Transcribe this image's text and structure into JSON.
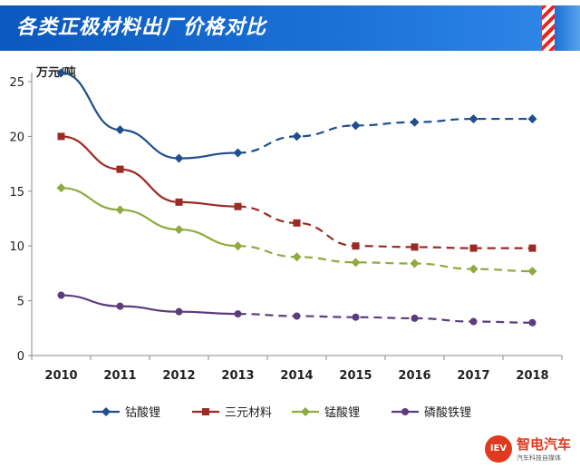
{
  "title": "各类正极材料出厂价格对比",
  "brand": {
    "logo": "IEV",
    "name": "智电汽车",
    "tagline": "汽车科技自媒体"
  },
  "colors": {
    "banner": "#1466cc"
  },
  "chart_data": {
    "type": "line",
    "ylabel": "万元/吨",
    "ylim": [
      0,
      25
    ],
    "yticks": [
      0,
      5,
      10,
      15,
      20,
      25
    ],
    "grid": false,
    "legend_position": "bottom",
    "categories": [
      "2010",
      "2011",
      "2012",
      "2013",
      "2014",
      "2015",
      "2016",
      "2017",
      "2018"
    ],
    "solid_until": "2013",
    "series": [
      {
        "name": "钴酸锂",
        "color": "#1f4e8c",
        "marker": "diamond",
        "values": [
          25.8,
          20.6,
          18.0,
          18.5,
          20.0,
          21.0,
          21.3,
          21.6,
          21.6
        ]
      },
      {
        "name": "三元材料",
        "color": "#9c2a24",
        "marker": "square",
        "values": [
          20.0,
          17.0,
          14.0,
          13.6,
          12.1,
          10.0,
          9.9,
          9.8,
          9.8
        ]
      },
      {
        "name": "锰酸锂",
        "color": "#8faa3e",
        "marker": "diamond",
        "values": [
          15.3,
          13.3,
          11.5,
          10.0,
          9.0,
          8.5,
          8.4,
          7.9,
          7.7
        ]
      },
      {
        "name": "磷酸铁锂",
        "color": "#5b3c7c",
        "marker": "circle",
        "values": [
          5.5,
          4.5,
          4.0,
          3.8,
          3.6,
          3.5,
          3.4,
          3.1,
          3.0
        ]
      }
    ]
  }
}
